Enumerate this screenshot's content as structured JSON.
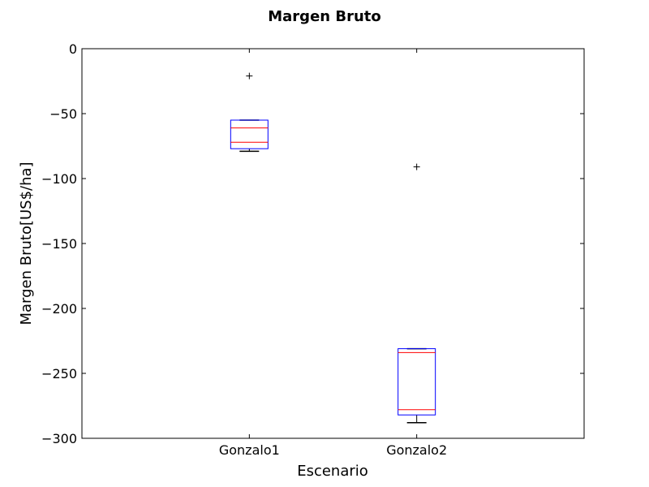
{
  "chart_data": {
    "type": "box",
    "title": "Margen Bruto",
    "xlabel": "Escenario",
    "ylabel": "Margen Bruto[US$/ha]",
    "ylim": [
      -300,
      0
    ],
    "yticks": [
      0,
      -50,
      -100,
      -150,
      -200,
      -250,
      -300
    ],
    "ytick_labels": [
      "0",
      "−50",
      "−100",
      "−150",
      "−200",
      "−250",
      "−300"
    ],
    "grid": false,
    "categories": [
      "Gonzalo1",
      "Gonzalo2"
    ],
    "boxes": [
      {
        "name": "Gonzalo1",
        "whisker_low": -79,
        "q1": -77,
        "q1_line": -72,
        "median": -61,
        "q3": -55,
        "whisker_high": -55,
        "outliers": [
          -21
        ]
      },
      {
        "name": "Gonzalo2",
        "whisker_low": -288,
        "q1": -282,
        "q1_line": -278,
        "median": -234,
        "q3": -231,
        "whisker_high": -231,
        "outliers": [
          -91
        ]
      }
    ],
    "colors": {
      "box": "#0000ff",
      "median": "#ff0000",
      "whisker": "#000000",
      "outlier": "#000000"
    }
  }
}
